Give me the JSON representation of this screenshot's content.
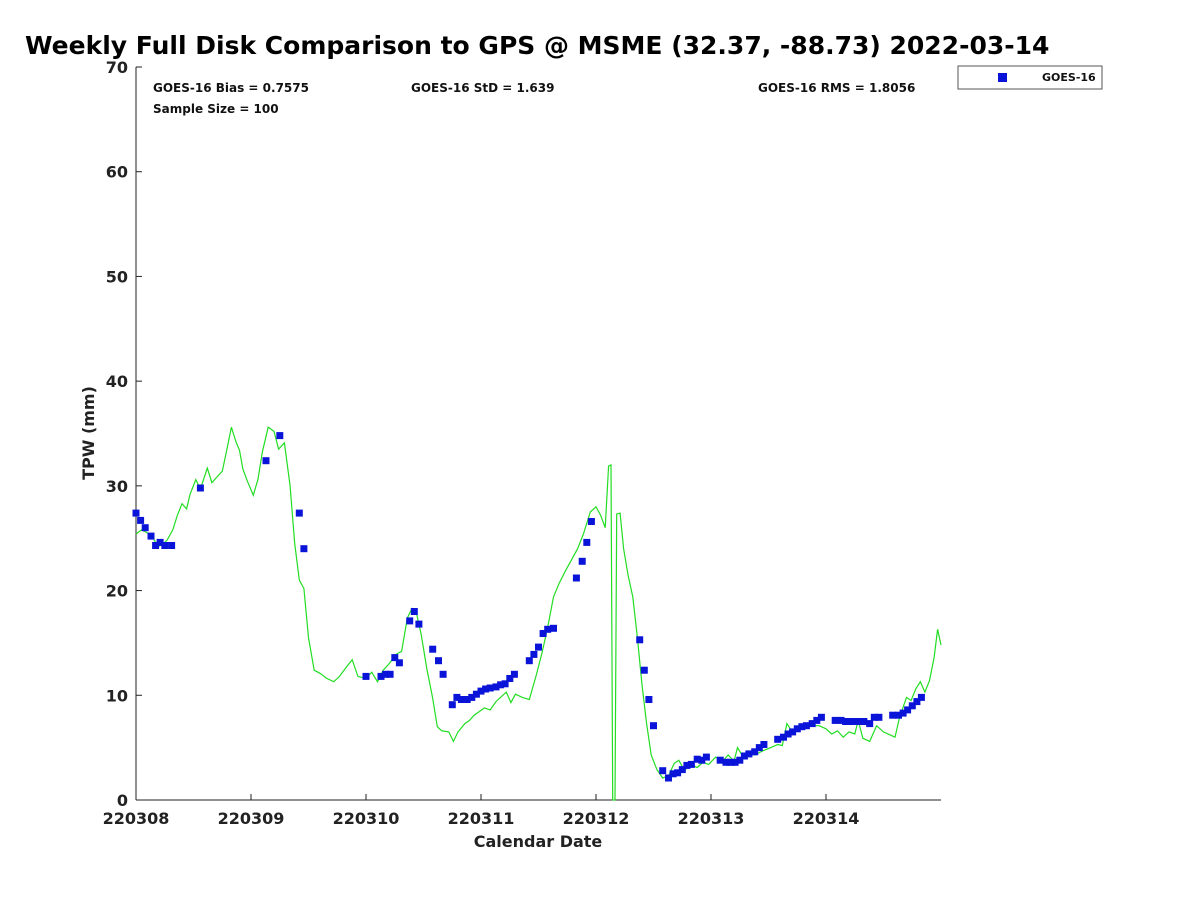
{
  "chart_data": {
    "type": "scatter",
    "title": "Weekly Full Disk Comparison to GPS @ MSME (32.37, -88.73) 2022-03-14",
    "xlabel": "Calendar Date",
    "ylabel": "TPW (mm)",
    "xlim": [
      220308,
      220315
    ],
    "ylim": [
      0,
      70
    ],
    "x_ticks": [
      {
        "value": 220308,
        "label": "220308"
      },
      {
        "value": 220309,
        "label": "220309"
      },
      {
        "value": 220310,
        "label": "220310"
      },
      {
        "value": 220311,
        "label": "220311"
      },
      {
        "value": 220312,
        "label": "220312"
      },
      {
        "value": 220313,
        "label": "220313"
      },
      {
        "value": 220314,
        "label": "220314"
      }
    ],
    "y_ticks": [
      {
        "value": 0,
        "label": "0"
      },
      {
        "value": 10,
        "label": "10"
      },
      {
        "value": 20,
        "label": "20"
      },
      {
        "value": 30,
        "label": "30"
      },
      {
        "value": 40,
        "label": "40"
      },
      {
        "value": 50,
        "label": "50"
      },
      {
        "value": 60,
        "label": "60"
      },
      {
        "value": 70,
        "label": "70"
      }
    ],
    "grid": false,
    "legend_position": "top-right, outside plot",
    "stats": {
      "bias": "GOES-16 Bias = 0.7575",
      "std": "GOES-16 StD = 1.639",
      "rms": "GOES-16 RMS = 1.8056",
      "sample": "Sample Size = 100"
    },
    "series": [
      {
        "name": "GOES-16",
        "kind": "scatter",
        "marker": "square",
        "color": "#0a14d8",
        "points": [
          [
            220308.0,
            27.4
          ],
          [
            220308.04,
            26.7
          ],
          [
            220308.08,
            26.0
          ],
          [
            220308.13,
            25.2
          ],
          [
            220308.17,
            24.3
          ],
          [
            220308.21,
            24.6
          ],
          [
            220308.25,
            24.3
          ],
          [
            220308.31,
            24.3
          ],
          [
            220308.56,
            29.8
          ],
          [
            220309.13,
            32.4
          ],
          [
            220309.25,
            34.8
          ],
          [
            220309.42,
            27.4
          ],
          [
            220309.46,
            24.0
          ],
          [
            220310.0,
            11.8
          ],
          [
            220310.13,
            11.8
          ],
          [
            220310.17,
            12.0
          ],
          [
            220310.21,
            12.0
          ],
          [
            220310.25,
            13.6
          ],
          [
            220310.29,
            13.1
          ],
          [
            220310.38,
            17.1
          ],
          [
            220310.42,
            18.0
          ],
          [
            220310.46,
            16.8
          ],
          [
            220310.58,
            14.4
          ],
          [
            220310.63,
            13.3
          ],
          [
            220310.67,
            12.0
          ],
          [
            220310.75,
            9.1
          ],
          [
            220310.79,
            9.8
          ],
          [
            220310.83,
            9.6
          ],
          [
            220310.88,
            9.6
          ],
          [
            220310.92,
            9.8
          ],
          [
            220310.96,
            10.1
          ],
          [
            220311.0,
            10.4
          ],
          [
            220311.04,
            10.6
          ],
          [
            220311.08,
            10.7
          ],
          [
            220311.13,
            10.8
          ],
          [
            220311.17,
            11.0
          ],
          [
            220311.21,
            11.1
          ],
          [
            220311.25,
            11.6
          ],
          [
            220311.29,
            12.0
          ],
          [
            220311.42,
            13.3
          ],
          [
            220311.46,
            13.9
          ],
          [
            220311.5,
            14.6
          ],
          [
            220311.54,
            15.9
          ],
          [
            220311.58,
            16.3
          ],
          [
            220311.63,
            16.4
          ],
          [
            220311.83,
            21.2
          ],
          [
            220311.88,
            22.8
          ],
          [
            220311.92,
            24.6
          ],
          [
            220311.96,
            26.6
          ],
          [
            220312.38,
            15.3
          ],
          [
            220312.42,
            12.4
          ],
          [
            220312.46,
            9.6
          ],
          [
            220312.5,
            7.1
          ],
          [
            220312.58,
            2.8
          ],
          [
            220312.63,
            2.1
          ],
          [
            220312.67,
            2.5
          ],
          [
            220312.71,
            2.6
          ],
          [
            220312.75,
            2.9
          ],
          [
            220312.79,
            3.3
          ],
          [
            220312.83,
            3.4
          ],
          [
            220312.88,
            3.9
          ],
          [
            220312.92,
            3.8
          ],
          [
            220312.96,
            4.1
          ],
          [
            220313.08,
            3.8
          ],
          [
            220313.13,
            3.6
          ],
          [
            220313.17,
            3.6
          ],
          [
            220313.21,
            3.6
          ],
          [
            220313.25,
            3.8
          ],
          [
            220313.29,
            4.2
          ],
          [
            220313.33,
            4.4
          ],
          [
            220313.38,
            4.6
          ],
          [
            220313.42,
            5.0
          ],
          [
            220313.46,
            5.3
          ],
          [
            220313.58,
            5.8
          ],
          [
            220313.63,
            6.0
          ],
          [
            220313.67,
            6.3
          ],
          [
            220313.71,
            6.5
          ],
          [
            220313.75,
            6.8
          ],
          [
            220313.79,
            7.0
          ],
          [
            220313.83,
            7.1
          ],
          [
            220313.88,
            7.3
          ],
          [
            220313.92,
            7.6
          ],
          [
            220313.96,
            7.9
          ],
          [
            220314.08,
            7.6
          ],
          [
            220314.13,
            7.6
          ],
          [
            220314.17,
            7.5
          ],
          [
            220314.21,
            7.5
          ],
          [
            220314.25,
            7.5
          ],
          [
            220314.29,
            7.5
          ],
          [
            220314.33,
            7.5
          ],
          [
            220314.38,
            7.3
          ],
          [
            220314.42,
            7.9
          ],
          [
            220314.46,
            7.9
          ],
          [
            220314.58,
            8.1
          ],
          [
            220314.63,
            8.1
          ],
          [
            220314.67,
            8.3
          ],
          [
            220314.71,
            8.6
          ],
          [
            220314.75,
            9.0
          ],
          [
            220314.79,
            9.4
          ],
          [
            220314.83,
            9.8
          ]
        ]
      },
      {
        "name": "",
        "kind": "line",
        "color": "#22dd22",
        "points": [
          [
            220308.0,
            25.4
          ],
          [
            220308.05,
            25.8
          ],
          [
            220308.1,
            25.5
          ],
          [
            220308.15,
            25.0
          ],
          [
            220308.19,
            24.2
          ],
          [
            220308.23,
            24.4
          ],
          [
            220308.27,
            24.8
          ],
          [
            220308.32,
            25.8
          ],
          [
            220308.36,
            27.2
          ],
          [
            220308.4,
            28.3
          ],
          [
            220308.44,
            27.8
          ],
          [
            220308.47,
            29.2
          ],
          [
            220308.52,
            30.6
          ],
          [
            220308.56,
            29.7
          ],
          [
            220308.62,
            31.7
          ],
          [
            220308.66,
            30.3
          ],
          [
            220308.7,
            30.8
          ],
          [
            220308.75,
            31.4
          ],
          [
            220308.79,
            33.5
          ],
          [
            220308.83,
            35.6
          ],
          [
            220308.87,
            34.2
          ],
          [
            220308.9,
            33.4
          ],
          [
            220308.93,
            31.6
          ],
          [
            220308.97,
            30.4
          ],
          [
            220309.02,
            29.1
          ],
          [
            220309.06,
            30.6
          ],
          [
            220309.1,
            33.3
          ],
          [
            220309.15,
            35.6
          ],
          [
            220309.2,
            35.2
          ],
          [
            220309.24,
            33.5
          ],
          [
            220309.29,
            34.1
          ],
          [
            220309.34,
            30.0
          ],
          [
            220309.38,
            24.5
          ],
          [
            220309.42,
            21.0
          ],
          [
            220309.46,
            20.2
          ],
          [
            220309.5,
            15.5
          ],
          [
            220309.55,
            12.4
          ],
          [
            220309.6,
            12.1
          ],
          [
            220309.66,
            11.6
          ],
          [
            220309.72,
            11.3
          ],
          [
            220309.77,
            11.8
          ],
          [
            220309.83,
            12.7
          ],
          [
            220309.88,
            13.4
          ],
          [
            220309.93,
            11.8
          ],
          [
            220310.0,
            11.6
          ],
          [
            220310.05,
            12.2
          ],
          [
            220310.1,
            11.3
          ],
          [
            220310.15,
            12.4
          ],
          [
            220310.2,
            13.0
          ],
          [
            220310.26,
            13.9
          ],
          [
            220310.31,
            14.2
          ],
          [
            220310.36,
            17.4
          ],
          [
            220310.4,
            18.3
          ],
          [
            220310.44,
            17.8
          ],
          [
            220310.48,
            15.8
          ],
          [
            220310.53,
            12.5
          ],
          [
            220310.58,
            9.7
          ],
          [
            220310.62,
            7.0
          ],
          [
            220310.66,
            6.6
          ],
          [
            220310.72,
            6.5
          ],
          [
            220310.76,
            5.6
          ],
          [
            220310.8,
            6.5
          ],
          [
            220310.86,
            7.3
          ],
          [
            220310.9,
            7.6
          ],
          [
            220310.94,
            8.1
          ],
          [
            220310.98,
            8.4
          ],
          [
            220311.03,
            8.8
          ],
          [
            220311.08,
            8.6
          ],
          [
            220311.13,
            9.4
          ],
          [
            220311.18,
            9.9
          ],
          [
            220311.22,
            10.3
          ],
          [
            220311.26,
            9.3
          ],
          [
            220311.3,
            10.1
          ],
          [
            220311.36,
            9.8
          ],
          [
            220311.42,
            9.6
          ],
          [
            220311.48,
            11.9
          ],
          [
            220311.53,
            14.0
          ],
          [
            220311.58,
            16.5
          ],
          [
            220311.63,
            19.4
          ],
          [
            220311.68,
            20.7
          ],
          [
            220311.73,
            21.8
          ],
          [
            220311.78,
            22.8
          ],
          [
            220311.84,
            24.0
          ],
          [
            220311.89,
            25.4
          ],
          [
            220311.95,
            27.5
          ],
          [
            220312.0,
            28.0
          ],
          [
            220312.04,
            27.2
          ],
          [
            220312.08,
            26.0
          ],
          [
            220312.11,
            31.9
          ],
          [
            220312.13,
            32.0
          ],
          [
            220312.145,
            0
          ],
          [
            220312.165,
            0
          ],
          [
            220312.18,
            27.3
          ],
          [
            220312.21,
            27.4
          ],
          [
            220312.24,
            24.0
          ],
          [
            220312.28,
            21.4
          ],
          [
            220312.32,
            19.4
          ],
          [
            220312.36,
            15.5
          ],
          [
            220312.4,
            11.0
          ],
          [
            220312.44,
            7.3
          ],
          [
            220312.48,
            4.3
          ],
          [
            220312.53,
            2.9
          ],
          [
            220312.58,
            2.1
          ],
          [
            220312.63,
            2.3
          ],
          [
            220312.68,
            3.5
          ],
          [
            220312.72,
            3.8
          ],
          [
            220312.77,
            2.8
          ],
          [
            220312.82,
            3.4
          ],
          [
            220312.88,
            3.1
          ],
          [
            220312.93,
            3.6
          ],
          [
            220312.98,
            3.4
          ],
          [
            220313.04,
            4.1
          ],
          [
            220313.1,
            3.7
          ],
          [
            220313.15,
            4.3
          ],
          [
            220313.2,
            3.7
          ],
          [
            220313.23,
            5.0
          ],
          [
            220313.28,
            4.1
          ],
          [
            220313.33,
            4.4
          ],
          [
            220313.38,
            4.3
          ],
          [
            220313.45,
            4.7
          ],
          [
            220313.52,
            5.0
          ],
          [
            220313.58,
            5.3
          ],
          [
            220313.62,
            5.2
          ],
          [
            220313.66,
            7.3
          ],
          [
            220313.7,
            6.6
          ],
          [
            220313.76,
            6.8
          ],
          [
            220313.82,
            6.9
          ],
          [
            220313.88,
            7.1
          ],
          [
            220313.94,
            7.1
          ],
          [
            220314.0,
            6.8
          ],
          [
            220314.05,
            6.3
          ],
          [
            220314.1,
            6.6
          ],
          [
            220314.15,
            6.0
          ],
          [
            220314.2,
            6.5
          ],
          [
            220314.25,
            6.3
          ],
          [
            220314.28,
            7.6
          ],
          [
            220314.32,
            5.9
          ],
          [
            220314.38,
            5.6
          ],
          [
            220314.44,
            7.1
          ],
          [
            220314.5,
            6.5
          ],
          [
            220314.56,
            6.2
          ],
          [
            220314.6,
            6.0
          ],
          [
            220314.64,
            7.9
          ],
          [
            220314.7,
            9.8
          ],
          [
            220314.74,
            9.5
          ],
          [
            220314.78,
            10.6
          ],
          [
            220314.82,
            11.3
          ],
          [
            220314.86,
            10.3
          ],
          [
            220314.9,
            11.4
          ],
          [
            220314.94,
            13.6
          ],
          [
            220314.97,
            16.3
          ],
          [
            220315.0,
            14.8
          ]
        ]
      }
    ]
  }
}
